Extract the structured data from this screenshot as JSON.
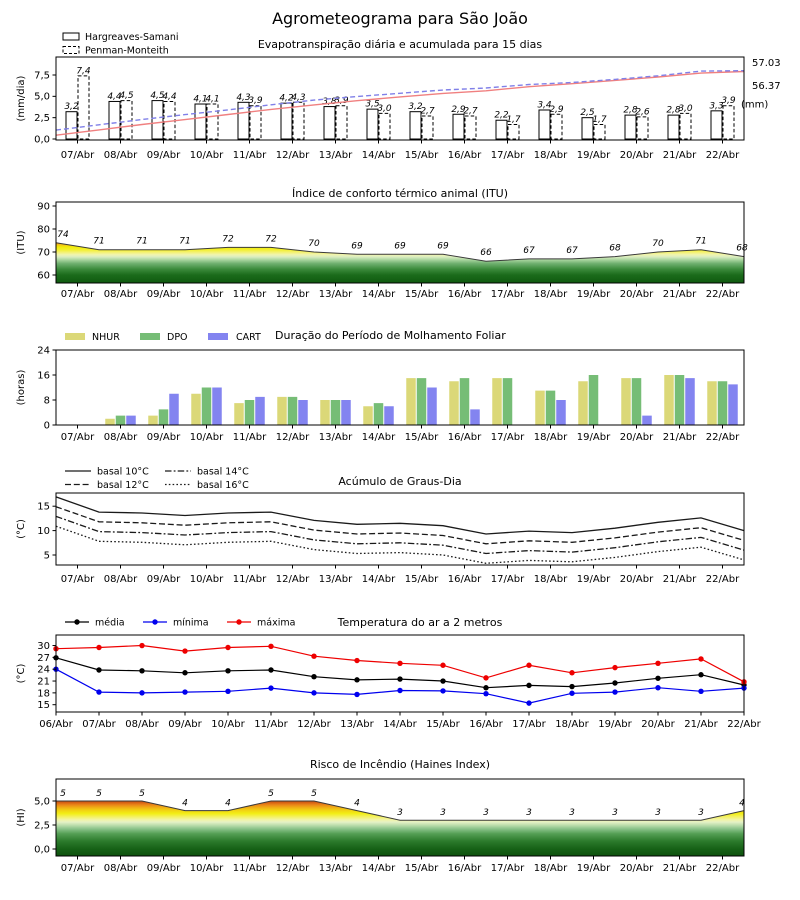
{
  "title": "Agrometeograma para São João",
  "dates": [
    "06/Abr",
    "07/Abr",
    "08/Abr",
    "09/Abr",
    "10/Abr",
    "11/Abr",
    "12/Abr",
    "13/Abr",
    "14/Abr",
    "15/Abr",
    "16/Abr",
    "17/Abr",
    "18/Abr",
    "19/Abr",
    "20/Abr",
    "21/Abr",
    "22/Abr"
  ],
  "colors": {
    "cum_hargreaves": "#f08080",
    "cum_penman": "#8080e8",
    "accum_label_blue": "#3030d0",
    "accum_label_red": "#e03030",
    "nhur": "#dbd878",
    "dpo": "#76bd76",
    "cart": "#8384f0",
    "temp_media": "#000000",
    "temp_minima": "#0000ee",
    "temp_maxima": "#ee0000",
    "area_line": "#3a3a3a"
  },
  "chart_data": [
    {
      "id": "evapotranspiracao",
      "type": "bar",
      "title": "Evapotranspiração diária e acumulada para 15 dias",
      "ylabel": "(mm/dia)",
      "yticks": [
        0,
        2.5,
        5,
        7.5
      ],
      "ylim": [
        0,
        9.6
      ],
      "decimal_comma": true,
      "categories": [
        "07/Abr",
        "08/Abr",
        "09/Abr",
        "10/Abr",
        "11/Abr",
        "12/Abr",
        "13/Abr",
        "14/Abr",
        "15/Abr",
        "16/Abr",
        "17/Abr",
        "18/Abr",
        "19/Abr",
        "20/Abr",
        "21/Abr",
        "22/Abr"
      ],
      "legend": [
        {
          "label": "Hargreaves-Samani",
          "style": "solid"
        },
        {
          "label": "Penman-Monteith",
          "style": "dashed"
        }
      ],
      "series": [
        {
          "name": "Hargreaves-Samani",
          "values": [
            3.2,
            4.4,
            4.5,
            4.1,
            4.3,
            4.2,
            3.8,
            3.5,
            3.2,
            2.9,
            2.2,
            3.4,
            2.5,
            2.8,
            2.8,
            3.3
          ]
        },
        {
          "name": "Penman-Monteith",
          "values": [
            7.4,
            4.5,
            4.4,
            4.1,
            3.9,
            4.3,
            3.9,
            3.0,
            2.7,
            2.7,
            1.7,
            2.9,
            1.7,
            2.6,
            3.0,
            3.9
          ]
        }
      ],
      "cumulative": [
        {
          "name": "Hargreaves-Samani acumulado",
          "dash": false,
          "values": [
            3.2,
            7.6,
            12.1,
            16.2,
            20.5,
            24.7,
            28.5,
            32.0,
            35.2,
            38.1,
            40.3,
            43.7,
            46.2,
            49.0,
            51.8,
            55.1,
            56.37
          ],
          "total_label": "56.37"
        },
        {
          "name": "Penman-Monteith acumulado",
          "dash": true,
          "values": [
            7.4,
            11.9,
            16.3,
            20.4,
            24.3,
            28.6,
            32.5,
            35.5,
            38.2,
            40.9,
            42.6,
            45.5,
            47.2,
            49.8,
            52.8,
            56.7,
            57.03
          ],
          "total_label": "57.03"
        }
      ],
      "right_axis_unit": "(mm)"
    },
    {
      "id": "itu",
      "type": "area",
      "title": "Índice de conforto térmico animal (ITU)",
      "ylabel": "(ITU)",
      "yticks": [
        60,
        70,
        80,
        90
      ],
      "ylim": [
        56.5,
        91.5
      ],
      "values": [
        74,
        71,
        71,
        71,
        72,
        72,
        70,
        69,
        69,
        69,
        66,
        67,
        67,
        68,
        70,
        71,
        68
      ],
      "gradient": [
        [
          57,
          "#115c11"
        ],
        [
          60,
          "#1b6b1b"
        ],
        [
          62.5,
          "#3b8a3b"
        ],
        [
          65,
          "#6fb06f"
        ],
        [
          66.5,
          "#a6d39c"
        ],
        [
          67.8,
          "#d8ecc0"
        ],
        [
          68.8,
          "#f0f4b2"
        ],
        [
          69.8,
          "#f4f276"
        ],
        [
          71,
          "#f3ef2e"
        ],
        [
          72.2,
          "#f1ec08"
        ],
        [
          73,
          "#f2c918"
        ],
        [
          73.8,
          "#f0a318"
        ],
        [
          74.5,
          "#e67d1e"
        ],
        [
          75.5,
          "#d2571a"
        ]
      ]
    },
    {
      "id": "molhamento",
      "type": "grouped-bar",
      "title": "Duração do Período de Molhamento Foliar",
      "ylabel": "(horas)",
      "yticks": [
        0,
        8,
        16,
        24
      ],
      "ylim": [
        0,
        24.5
      ],
      "categories": [
        "07/Abr",
        "08/Abr",
        "09/Abr",
        "10/Abr",
        "11/Abr",
        "12/Abr",
        "13/Abr",
        "14/Abr",
        "15/Abr",
        "16/Abr",
        "17/Abr",
        "18/Abr",
        "19/Abr",
        "20/Abr",
        "21/Abr",
        "22/Abr"
      ],
      "series": [
        {
          "name": "NHUR",
          "color": "#dbd878",
          "values": [
            0,
            2,
            3,
            10,
            7,
            9,
            8,
            6,
            15,
            14,
            15,
            11,
            14,
            15,
            16,
            14
          ]
        },
        {
          "name": "DPO",
          "color": "#76bd76",
          "values": [
            0,
            3,
            5,
            12,
            8,
            9,
            8,
            7,
            15,
            15,
            15,
            11,
            16,
            15,
            16,
            14
          ]
        },
        {
          "name": "CART",
          "color": "#8384f0",
          "values": [
            0,
            3,
            10,
            12,
            9,
            8,
            8,
            6,
            12,
            5,
            0,
            8,
            0,
            3,
            15,
            13
          ]
        }
      ]
    },
    {
      "id": "graus_dia",
      "type": "line",
      "title": "Acúmulo de Graus-Dia",
      "ylabel": "(°C)",
      "yticks": [
        5,
        10,
        15
      ],
      "ylim": [
        2.9,
        17.7
      ],
      "series": [
        {
          "name": "basal 10°C",
          "style": "solid",
          "values": [
            16.9,
            13.8,
            13.6,
            13.1,
            13.6,
            13.8,
            12.1,
            11.3,
            11.5,
            11.0,
            9.3,
            9.9,
            9.6,
            10.5,
            11.7,
            12.6,
            10.0
          ]
        },
        {
          "name": "basal 12°C",
          "style": "dashed",
          "values": [
            14.9,
            11.8,
            11.6,
            11.1,
            11.6,
            11.8,
            10.1,
            9.3,
            9.5,
            9.0,
            7.3,
            7.9,
            7.6,
            8.5,
            9.7,
            10.6,
            8.0
          ]
        },
        {
          "name": "basal 14°C",
          "style": "dashdot",
          "values": [
            12.9,
            9.8,
            9.6,
            9.1,
            9.6,
            9.8,
            8.1,
            7.3,
            7.5,
            7.0,
            5.3,
            5.9,
            5.6,
            6.5,
            7.7,
            8.6,
            6.0
          ]
        },
        {
          "name": "basal 16°C",
          "style": "dotted",
          "values": [
            10.9,
            7.8,
            7.6,
            7.1,
            7.6,
            7.8,
            6.1,
            5.3,
            5.5,
            5.0,
            3.3,
            3.9,
            3.6,
            4.5,
            5.7,
            6.6,
            4.0
          ]
        }
      ]
    },
    {
      "id": "temperatura",
      "type": "line-markers",
      "title": "Temperatura do ar a 2 metros",
      "ylabel": "(°C)",
      "yticks": [
        15,
        18,
        21,
        24,
        27,
        30
      ],
      "ylim": [
        13.1,
        33.2
      ],
      "series": [
        {
          "name": "média",
          "color": "#000000",
          "values": [
            26.9,
            23.8,
            23.6,
            23.1,
            23.6,
            23.8,
            22.1,
            21.3,
            21.5,
            21.0,
            19.3,
            19.9,
            19.6,
            20.5,
            21.7,
            22.6,
            20.0
          ]
        },
        {
          "name": "mínima",
          "color": "#0000ee",
          "values": [
            24.0,
            18.2,
            18.0,
            18.2,
            18.4,
            19.2,
            18.0,
            17.6,
            18.6,
            18.5,
            17.8,
            15.4,
            17.9,
            18.2,
            19.3,
            18.4,
            19.2
          ]
        },
        {
          "name": "máxima",
          "color": "#ee0000",
          "values": [
            29.2,
            29.5,
            30.0,
            28.6,
            29.5,
            29.8,
            27.3,
            26.2,
            25.5,
            25.0,
            21.8,
            25.0,
            23.1,
            24.4,
            25.5,
            26.6,
            20.8
          ]
        }
      ]
    },
    {
      "id": "haines",
      "type": "area",
      "title": "Risco de Incêndio (Haines Index)",
      "ylabel": "(HI)",
      "yticks": [
        0,
        2.5,
        5
      ],
      "ylim": [
        -0.73,
        7.3
      ],
      "decimal_comma": true,
      "values": [
        5,
        5,
        5,
        4,
        4,
        5,
        5,
        4,
        3,
        3,
        3,
        3,
        3,
        3,
        3,
        3,
        4
      ],
      "gradient": [
        [
          -0.7,
          "#0e520e"
        ],
        [
          0,
          "#166116"
        ],
        [
          0.8,
          "#2b7a2b"
        ],
        [
          1.6,
          "#559f55"
        ],
        [
          2.1,
          "#8ac28a"
        ],
        [
          2.5,
          "#bfdfae"
        ],
        [
          2.8,
          "#e4f1c6"
        ],
        [
          3.05,
          "#f2f4a6"
        ],
        [
          3.35,
          "#f4f163"
        ],
        [
          3.7,
          "#f2ee14"
        ],
        [
          4.05,
          "#f2d013"
        ],
        [
          4.35,
          "#f0ab15"
        ],
        [
          4.6,
          "#ea8619"
        ],
        [
          4.85,
          "#d65f14"
        ],
        [
          5.1,
          "#bc4508"
        ],
        [
          5.3,
          "#a83a06"
        ]
      ]
    }
  ]
}
